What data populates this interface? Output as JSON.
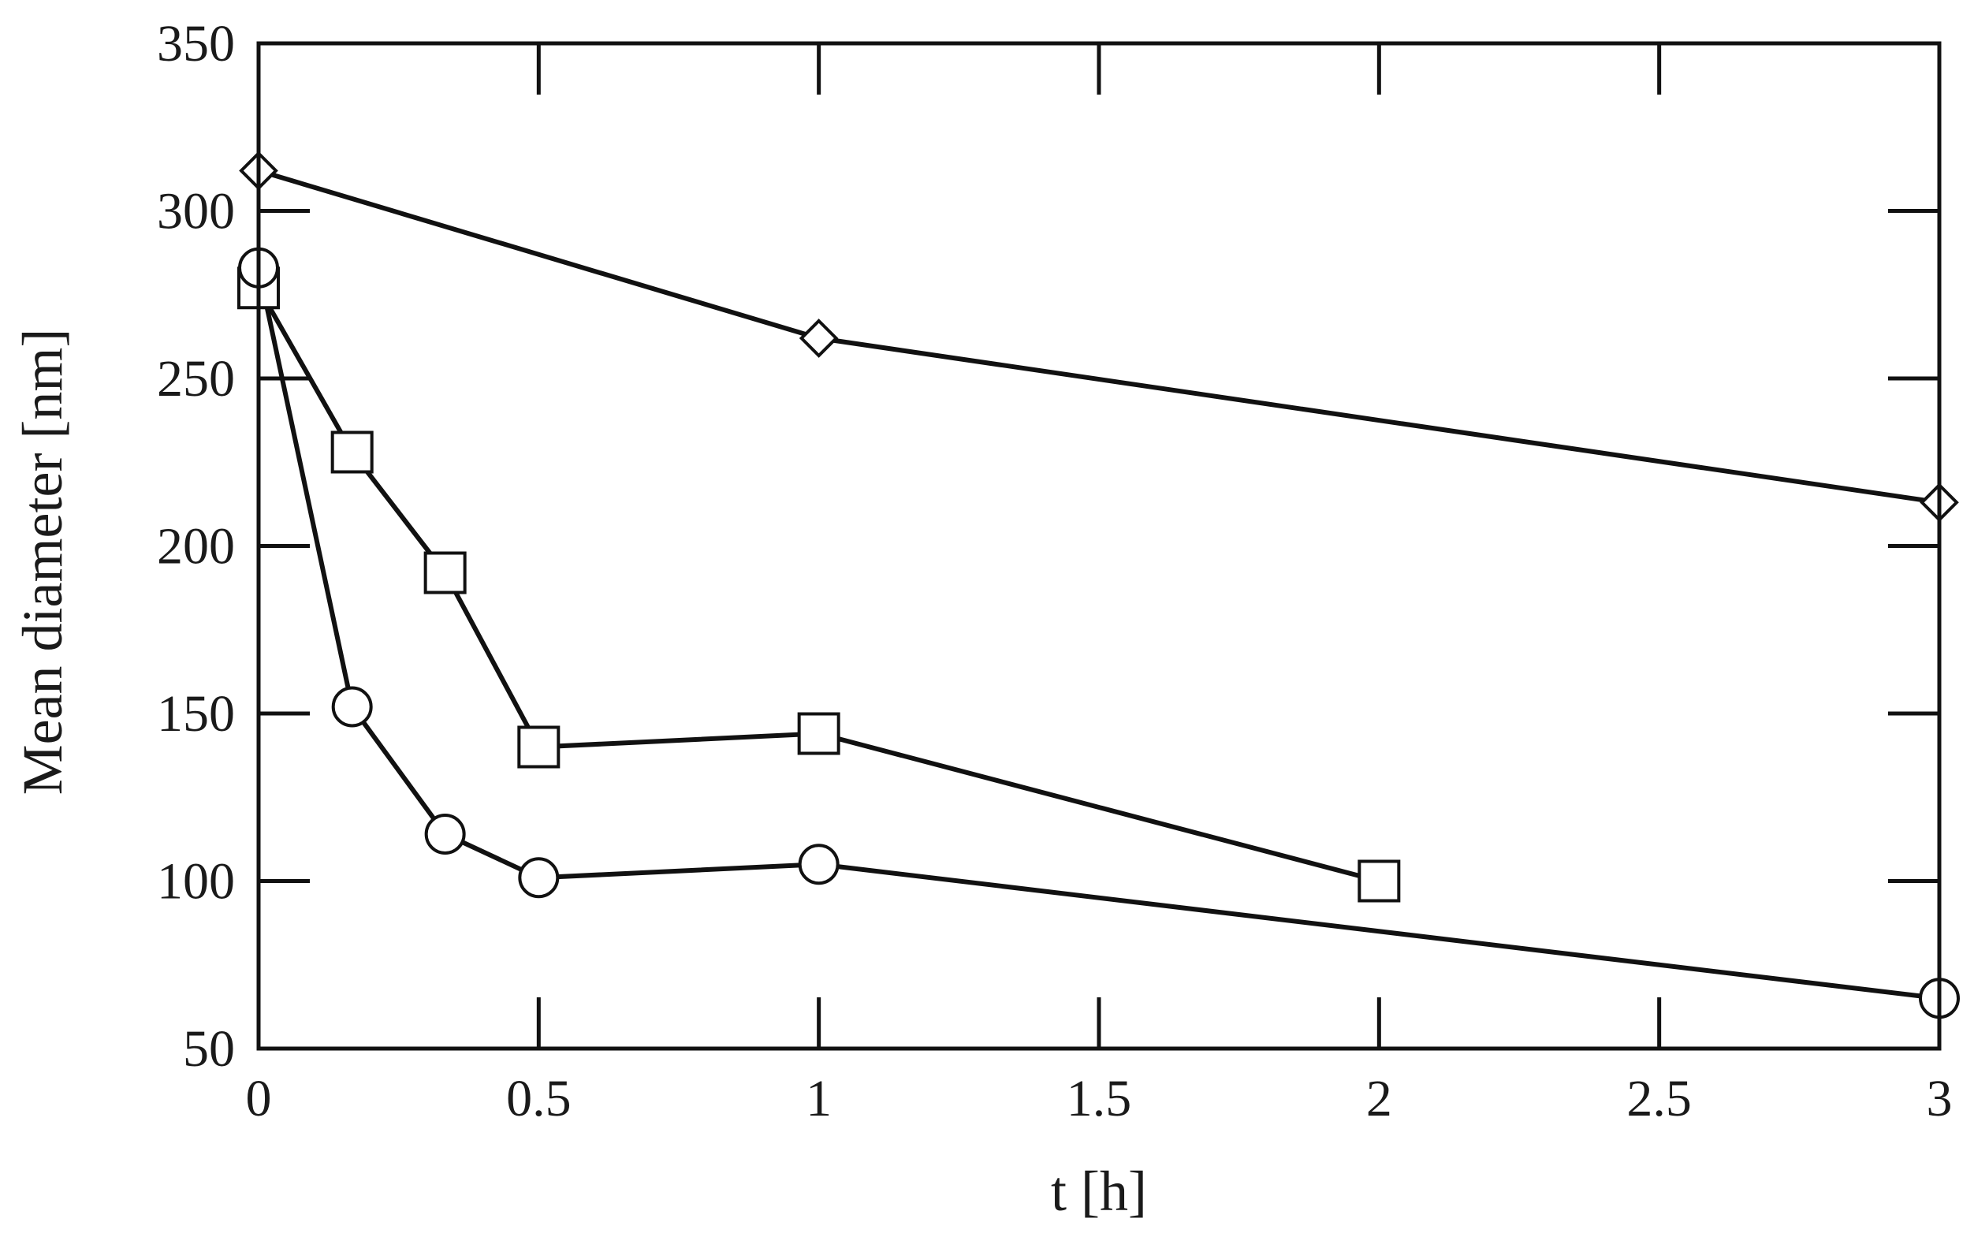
{
  "chart_data": {
    "type": "line",
    "title": "",
    "xlabel": "t [h]",
    "ylabel": "Mean diameter [nm]",
    "xlim": [
      0,
      3
    ],
    "ylim": [
      50,
      350
    ],
    "xticks": [
      0,
      0.5,
      1,
      1.5,
      2,
      2.5,
      3
    ],
    "xtick_labels": [
      "0",
      "0.5",
      "1",
      "1.5",
      "2",
      "2.5",
      "3"
    ],
    "yticks": [
      50,
      100,
      150,
      200,
      250,
      300,
      350
    ],
    "ytick_labels": [
      "50",
      "100",
      "150",
      "200",
      "250",
      "300",
      "350"
    ],
    "grid": false,
    "legend": "none",
    "line_color": "#111111",
    "series": [
      {
        "marker": "diamond",
        "x": [
          0,
          1,
          3
        ],
        "y": [
          312,
          262,
          213
        ]
      },
      {
        "marker": "square",
        "x": [
          0,
          0.167,
          0.333,
          0.5,
          1,
          2
        ],
        "y": [
          277,
          228,
          192,
          140,
          144,
          100
        ]
      },
      {
        "marker": "circle",
        "x": [
          0,
          0.167,
          0.333,
          0.5,
          1,
          3
        ],
        "y": [
          283,
          152,
          114,
          101,
          105,
          65
        ]
      }
    ]
  }
}
